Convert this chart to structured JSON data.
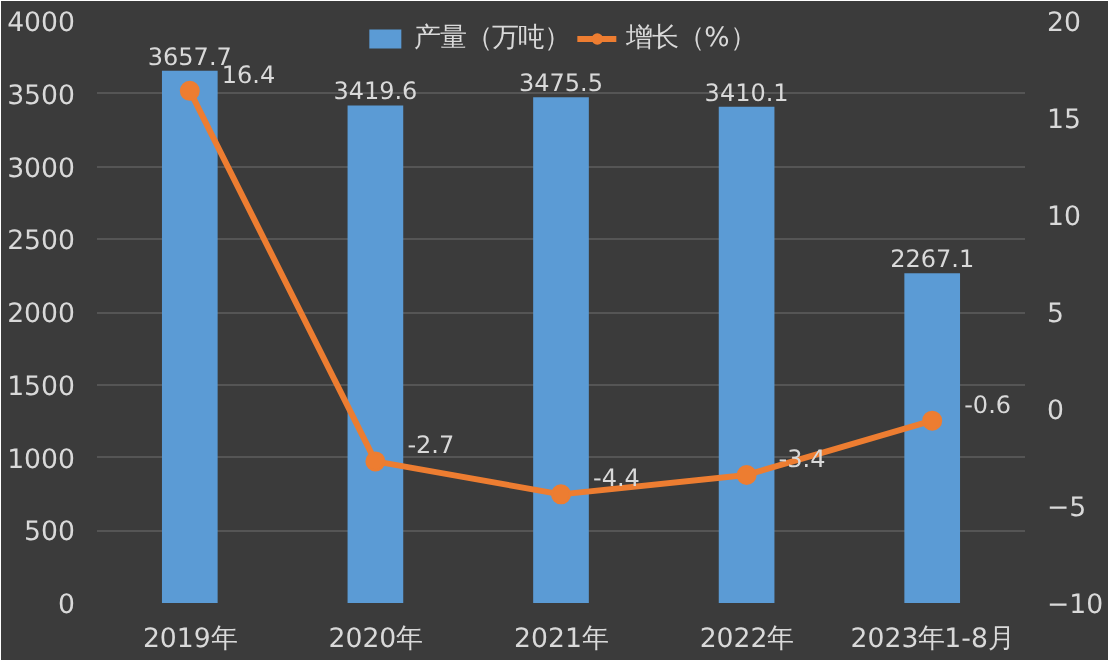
{
  "chart_data": {
    "type": "bar",
    "categories": [
      "2019年",
      "2020年",
      "2021年",
      "2022年",
      "2023年1-8月"
    ],
    "series": [
      {
        "name": "产量（万吨）",
        "color": "#5b9bd5",
        "values": [
          3657.7,
          3419.6,
          3475.5,
          3410.1,
          2267.1
        ]
      },
      {
        "name": "增长（%）",
        "type": "line",
        "axis": "y2",
        "color": "#ed7d31",
        "marker": "circle",
        "values": [
          16.4,
          -2.7,
          -4.4,
          -3.4,
          -0.6
        ]
      }
    ],
    "ylim": [
      0,
      4000
    ],
    "yticks": [
      0,
      500,
      1000,
      1500,
      2000,
      2500,
      3000,
      3500,
      4000
    ],
    "y2lim": [
      -10,
      20
    ],
    "y2ticks": [
      -10,
      -5,
      0,
      5,
      10,
      15,
      20
    ],
    "data_labels": true,
    "grid": "y",
    "legend": "top"
  }
}
